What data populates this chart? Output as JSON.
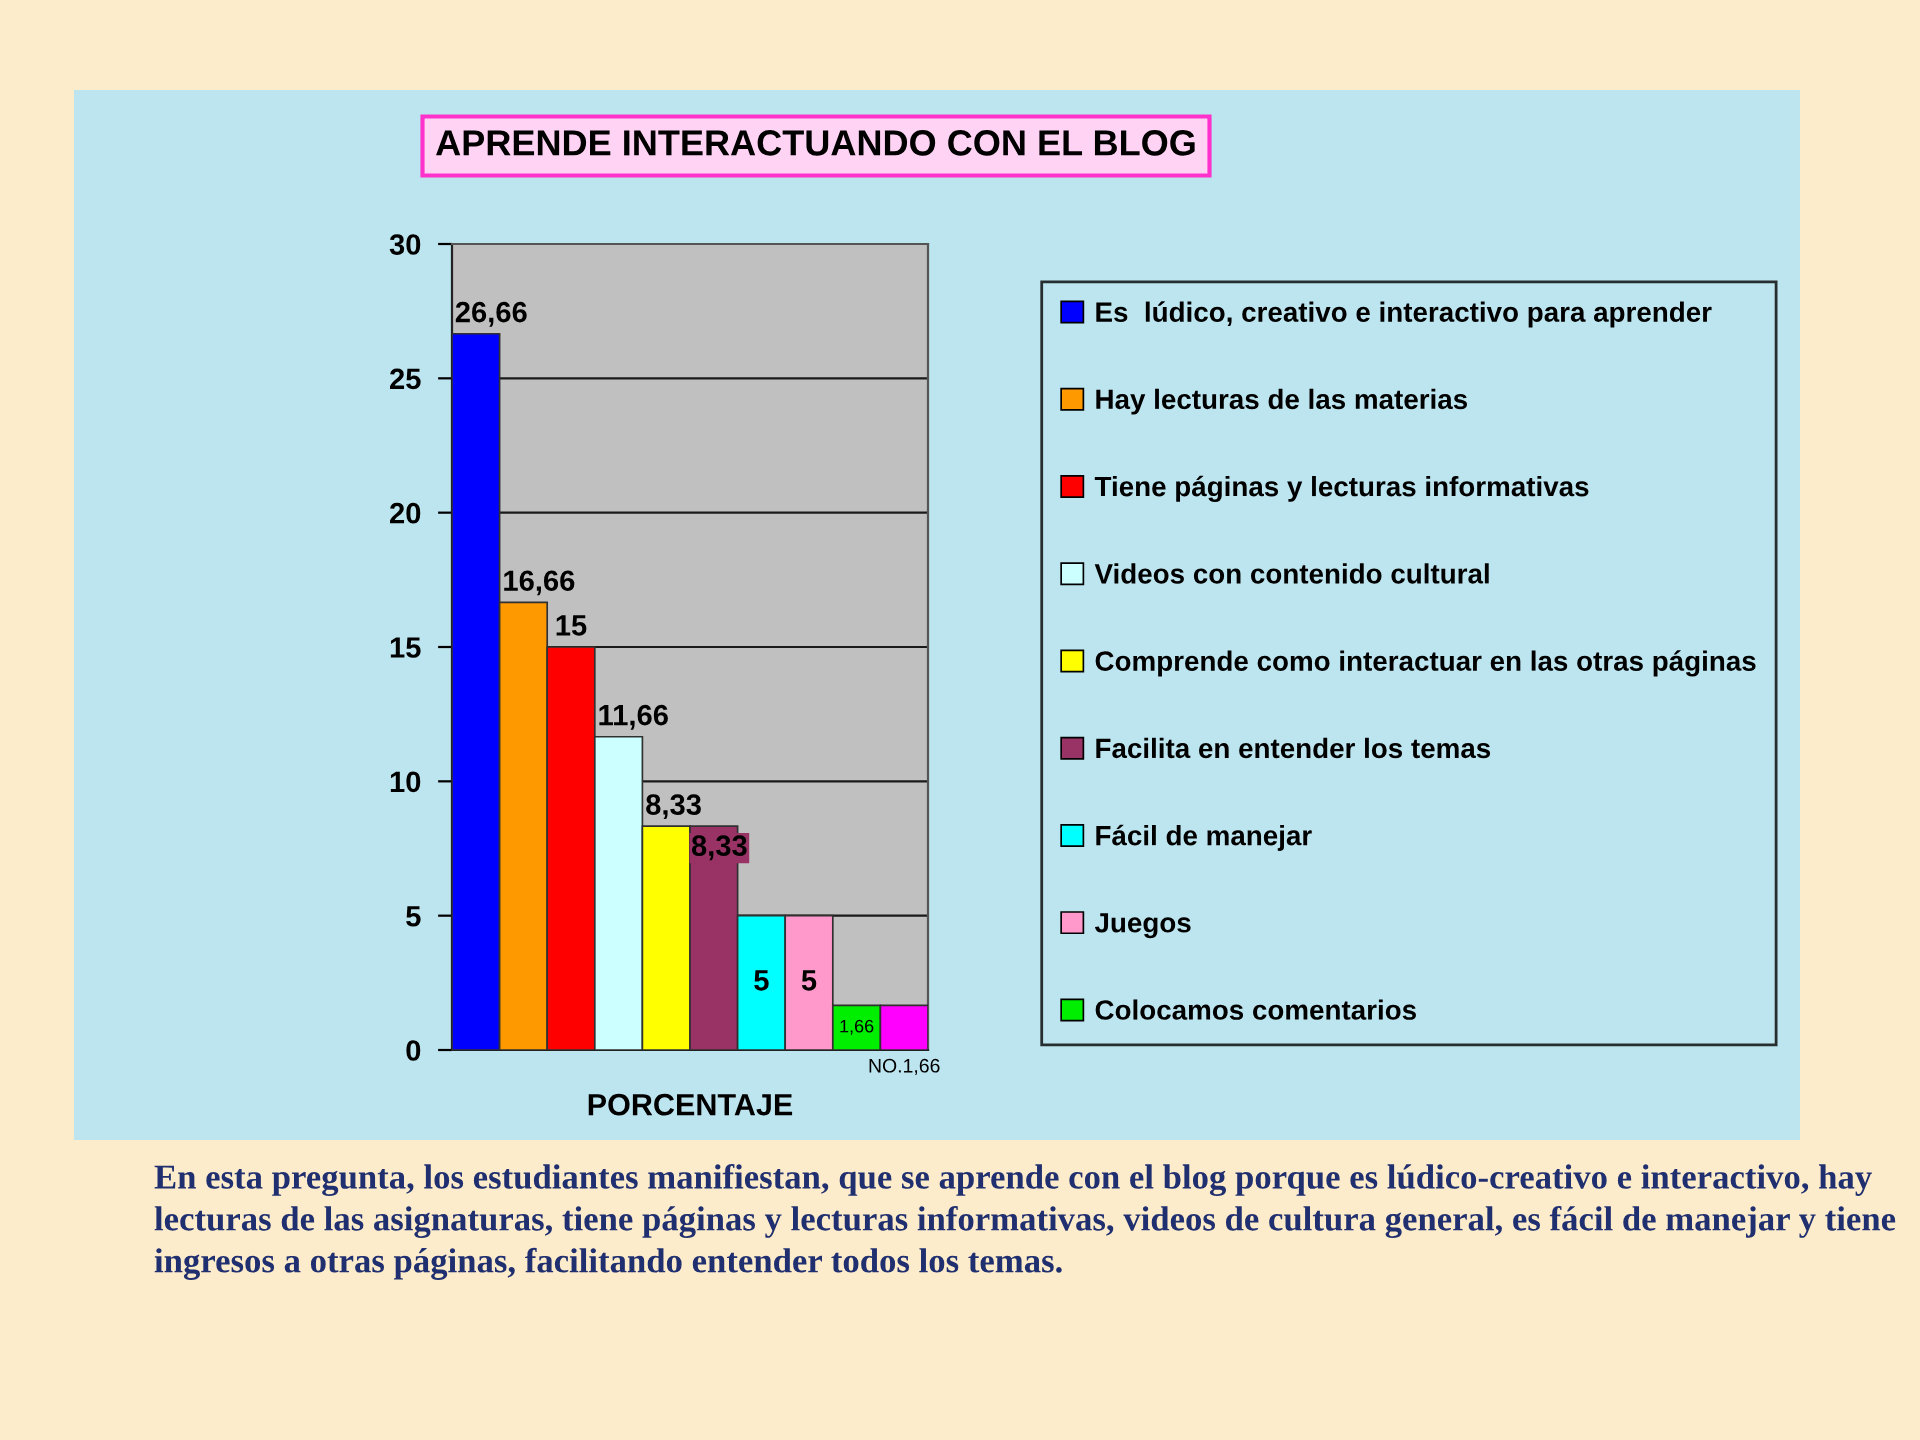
{
  "chart_data": {
    "type": "bar",
    "title": "APRENDE INTERACTUANDO CON EL BLOG",
    "xlabel": "PORCENTAJE",
    "categories": [
      null,
      null,
      null,
      null,
      null,
      null,
      null,
      null,
      null,
      null
    ],
    "series": [
      {
        "name": "Es  lúdico, creativo e interactivo para aprender",
        "color": "#0000ff",
        "values": [
          26.66,
          null,
          null,
          null,
          null,
          null,
          null,
          null,
          null,
          null
        ],
        "value_labels": [
          "26,66",
          null,
          null,
          null,
          null,
          null,
          null,
          null,
          null,
          null
        ]
      },
      {
        "name": "Hay lecturas de las materias",
        "color": "#ff9900",
        "values": [
          null,
          16.66,
          null,
          null,
          null,
          null,
          null,
          null,
          null,
          null
        ],
        "value_labels": [
          null,
          "16,66",
          null,
          null,
          null,
          null,
          null,
          null,
          null,
          null
        ]
      },
      {
        "name": "Tiene páginas y lecturas informativas",
        "color": "#ff0000",
        "values": [
          null,
          null,
          15,
          null,
          null,
          null,
          null,
          null,
          null,
          null
        ],
        "value_labels": [
          null,
          null,
          "15",
          null,
          null,
          null,
          null,
          null,
          null,
          null
        ]
      },
      {
        "name": "Videos con contenido cultural",
        "color": "#ccffff",
        "values": [
          null,
          null,
          null,
          11.66,
          null,
          null,
          null,
          null,
          null,
          null
        ],
        "value_labels": [
          null,
          null,
          null,
          "11,66",
          null,
          null,
          null,
          null,
          null,
          null
        ]
      },
      {
        "name": "Comprende como interactuar en las otras páginas",
        "color": "#ffff00",
        "values": [
          null,
          null,
          null,
          null,
          8.33,
          null,
          null,
          null,
          null,
          null
        ],
        "value_labels": [
          null,
          null,
          null,
          null,
          "8,33",
          null,
          null,
          null,
          null,
          null
        ]
      },
      {
        "name": "Facilita en entender los temas",
        "color": "#993366",
        "values": [
          null,
          null,
          null,
          null,
          null,
          8.33,
          null,
          null,
          null,
          null
        ],
        "value_labels": [
          null,
          null,
          null,
          null,
          null,
          "8,33",
          null,
          null,
          null,
          null
        ]
      },
      {
        "name": "Fácil de manejar",
        "color": "#00ffff",
        "values": [
          null,
          null,
          null,
          null,
          null,
          null,
          5,
          null,
          null,
          null
        ],
        "value_labels": [
          null,
          null,
          null,
          null,
          null,
          null,
          "5",
          null,
          null,
          null
        ]
      },
      {
        "name": "Juegos",
        "color": "#ff99cc",
        "values": [
          null,
          null,
          null,
          null,
          null,
          null,
          null,
          5,
          null,
          null
        ],
        "value_labels": [
          null,
          null,
          null,
          null,
          null,
          null,
          null,
          "5",
          null,
          null
        ]
      },
      {
        "name": "Colocamos comentarios",
        "color": "#00ee00",
        "values": [
          null,
          null,
          null,
          null,
          null,
          null,
          null,
          null,
          1.66,
          null
        ],
        "value_labels": [
          null,
          null,
          null,
          null,
          null,
          null,
          null,
          null,
          "1,66",
          null
        ]
      },
      {
        "color": "#ff00ff",
        "values": [
          null,
          null,
          null,
          null,
          null,
          null,
          null,
          null,
          null,
          1.66
        ],
        "value_labels": [
          null,
          null,
          null,
          null,
          null,
          null,
          null,
          null,
          null,
          "NO.1,66"
        ]
      }
    ],
    "ylim": [
      0,
      30
    ],
    "yticks": [
      0,
      5,
      10,
      15,
      20,
      25,
      30
    ],
    "grid": "y",
    "legend": "right",
    "annotations": [
      "En esta pregunta, los estudiantes manifiestan, que se aprende con el blog porque es lúdico-creativo e interactivo, hay lecturas de las asignaturas, tiene páginas y lecturas informativas, videos de cultura general, es fácil de manejar y tiene ingresos a otras páginas, facilitando entender todos los temas."
    ]
  }
}
